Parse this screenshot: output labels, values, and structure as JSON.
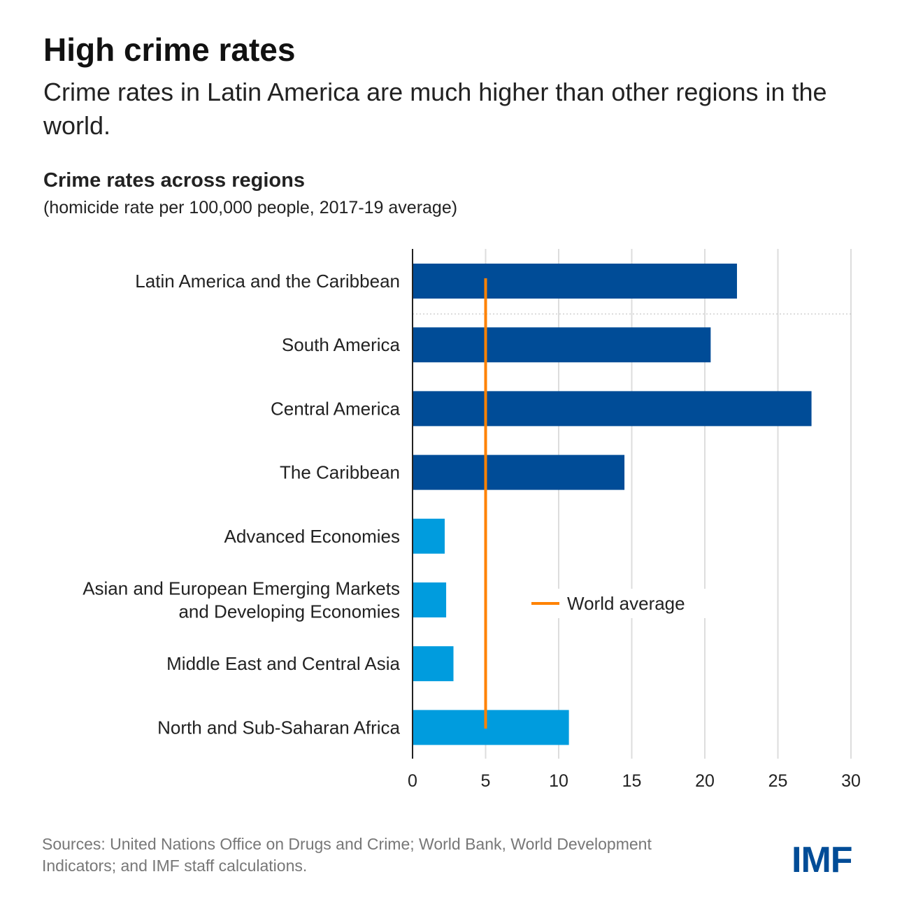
{
  "header": {
    "title": "High crime rates",
    "subtitle": "Crime rates in Latin America are much higher than other regions in the world."
  },
  "chart_data": {
    "type": "bar",
    "orientation": "horizontal",
    "title": "Crime rates across regions",
    "subtitle": "(homicide rate per 100,000 people, 2017-19 average)",
    "categories": [
      [
        "Latin America and the Caribbean"
      ],
      [
        "South America"
      ],
      [
        "Central America"
      ],
      [
        "The Caribbean"
      ],
      [
        "Advanced Economies"
      ],
      [
        "Asian and European Emerging Markets",
        "and Developing Economies"
      ],
      [
        "Middle East and Central Asia"
      ],
      [
        "North and Sub-Saharan Africa"
      ]
    ],
    "values": [
      22.2,
      20.4,
      27.3,
      14.5,
      2.2,
      2.3,
      2.8,
      10.7
    ],
    "bar_colors": [
      "#004c97",
      "#004c97",
      "#004c97",
      "#004c97",
      "#009cde",
      "#009cde",
      "#009cde",
      "#009cde"
    ],
    "reference_line": {
      "name": "World average",
      "value": 5.0,
      "color": "#ff8200"
    },
    "xlim": [
      0,
      30
    ],
    "xticks": [
      0,
      5,
      10,
      15,
      20,
      25,
      30
    ],
    "grid": true,
    "legend_placement": "center-right"
  },
  "footer": {
    "source": "Sources: United Nations Office on Drugs and Crime; World Bank, World Development Indicators; and IMF staff calculations.",
    "logo": "IMF"
  }
}
